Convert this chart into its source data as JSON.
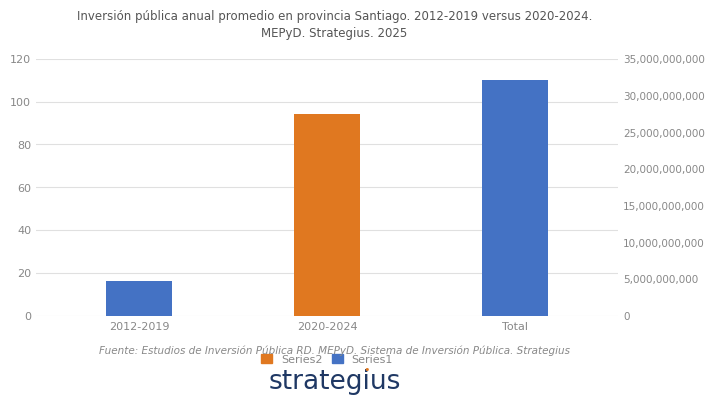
{
  "title_line1": "Inversión pública anual promedio en provincia Santiago. 2012-2019 versus 2020-2024.",
  "title_line2": "MEPyD. Strategius. 2025",
  "categories": [
    "2012-2019",
    "2020-2024",
    "Total"
  ],
  "series1_values": [
    16,
    0,
    110
  ],
  "series2_values": [
    0,
    94,
    0
  ],
  "series1_color": "#4472c4",
  "series2_color": "#e07820",
  "ylim_left": [
    0,
    120
  ],
  "ylim_right": [
    0,
    35000000000
  ],
  "yticks_left": [
    0,
    20,
    40,
    60,
    80,
    100,
    120
  ],
  "yticks_right": [
    0,
    5000000000,
    10000000000,
    15000000000,
    20000000000,
    25000000000,
    30000000000,
    35000000000
  ],
  "legend_series2_label": "Series2",
  "legend_series1_label": "Series1",
  "source_text": "Fuente: Estudios de Inversión Pública RD. MEPyD. Sistema de Inversión Pública. Strategius",
  "background_color": "#ffffff",
  "grid_color": "#e0e0e0",
  "tick_color": "#888888",
  "title_color": "#555555",
  "bar_width": 0.35
}
